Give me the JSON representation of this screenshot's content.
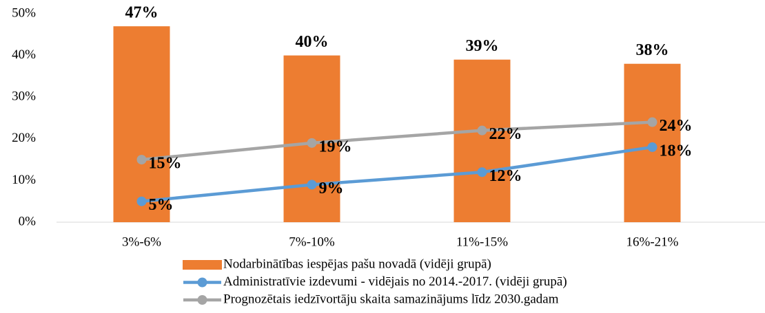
{
  "chart_data": {
    "type": "bar",
    "categories": [
      "3%-6%",
      "7%-10%",
      "11%-15%",
      "16%-21%"
    ],
    "series": [
      {
        "name": "Nodarbinātības iespējas pašu novadā (vidēji grupā)",
        "type": "bar",
        "color": "#ED7D31",
        "values": [
          47,
          40,
          39,
          38
        ],
        "value_labels": [
          "47%",
          "40%",
          "39%",
          "38%"
        ]
      },
      {
        "name": "Administratīvie izdevumi - vidējais no 2014.-2017. (vidēji grupā)",
        "type": "line",
        "color": "#5B9BD5",
        "values": [
          5,
          9,
          12,
          18
        ],
        "value_labels": [
          "5%",
          "9%",
          "12%",
          "18%"
        ]
      },
      {
        "name": "Prognozētais iedzīvortāju skaita samazinājums līdz 2030.gadam",
        "type": "line",
        "color": "#A5A5A5",
        "values": [
          15,
          19,
          22,
          24
        ],
        "value_labels": [
          "15%",
          "19%",
          "22%",
          "24%"
        ]
      }
    ],
    "ylim": [
      0,
      50
    ],
    "yticks": [
      {
        "value": 0,
        "label": "0%"
      },
      {
        "value": 10,
        "label": "10%"
      },
      {
        "value": 20,
        "label": "20%"
      },
      {
        "value": 30,
        "label": "30%"
      },
      {
        "value": 40,
        "label": "40%"
      },
      {
        "value": 50,
        "label": "50%"
      }
    ],
    "grid": false
  }
}
